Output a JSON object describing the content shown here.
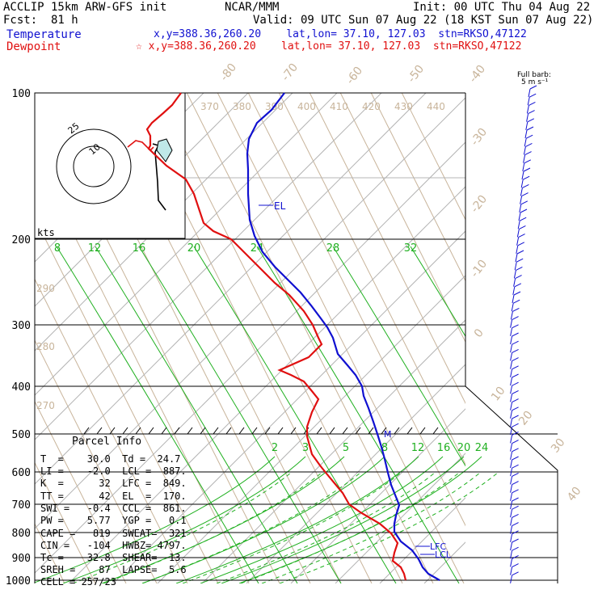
{
  "header": {
    "model": "ACCLIP 15km ARW-GFS init",
    "org": "NCAR/MMM",
    "init": "Init: 00 UTC Thu 04 Aug 22",
    "fcst_label": "Fcst:",
    "fcst_value": "81 h",
    "valid": "Valid: 09 UTC Sun 07 Aug 22 (18 KST Sun 07 Aug 22)",
    "temp_label": "Temperature",
    "dew_label": "Dewpoint",
    "temp_loc": "x,y=388.36,260.20    lat,lon= 37.10, 127.03  stn=RKSO,47122",
    "dew_loc": "☆ x,y=388.36,260.20    lat,lon= 37.10, 127.03  stn=RKSO,47122"
  },
  "wind_legend": {
    "line1": "Full barb:",
    "line2": "5 m s⁻¹"
  },
  "hodograph": {
    "units": "kts",
    "ring_labels": [
      "25",
      "10"
    ]
  },
  "parcel_info": {
    "title": "Parcel Info",
    "rows": [
      "T  =    30.0  Td =  24.7",
      "LI =    -2.0  LCL =  887.",
      "K  =      32  LFC =  849.",
      "TT =      42  EL  =  170.",
      "SWI =   -0.4  CCL =  861.",
      "PW =    5.77  YGP =   0.1",
      "CAPE =   819  SWEAT=  321",
      "CIN =   -104  HWBZ= 4797.",
      "Tc =    32.8  SHEAR=  13.",
      "SREH =    87  LAPSE=  5.6",
      "CELL = 257/23"
    ]
  },
  "levels": {
    "EL": "EL",
    "LFC": "LFC",
    "LCL": "LCL",
    "M": "M"
  },
  "colors": {
    "temperature": "#1010d0",
    "dewpoint": "#e01010",
    "mixing_ratio": "#20b020",
    "adiabat": "#c8b49a",
    "isobar": "#000000",
    "grid": "#b4b4b4"
  },
  "chart_data": {
    "type": "line",
    "xlabel": "",
    "ylabel": "",
    "pressure_levels": [
      100,
      200,
      300,
      400,
      500,
      600,
      700,
      800,
      900,
      1000
    ],
    "isotherm_labels": [
      "-80",
      "-70",
      "-60",
      "-50",
      "-40",
      "-30",
      "-20",
      "-10",
      "0",
      "10",
      "20",
      "30",
      "40"
    ],
    "theta_labels": [
      "370",
      "380",
      "390",
      "400",
      "410",
      "420",
      "430",
      "440"
    ],
    "theta_low_labels": [
      "290",
      "280",
      "270"
    ],
    "mixing_ratio_upper_labels": [
      "8",
      "12",
      "16",
      "20",
      "24",
      "28",
      "32"
    ],
    "mixing_ratio_lower_labels": [
      "2",
      "3",
      "5",
      "8",
      "12",
      "16",
      "20",
      "24"
    ],
    "series": [
      {
        "name": "Temperature",
        "pressure": [
          1000,
          950,
          900,
          850,
          800,
          750,
          700,
          650,
          600,
          550,
          500,
          450,
          400,
          375,
          350,
          330,
          300,
          250,
          200,
          170,
          150,
          125,
          100
        ],
        "temperature_c": [
          30,
          27,
          23,
          21,
          19,
          16.5,
          13,
          10,
          6.5,
          3,
          -1,
          -5,
          -10.5,
          -14,
          -18.5,
          -22,
          -28,
          -38.5,
          -51,
          -58,
          -64,
          -72,
          -78
        ]
      },
      {
        "name": "Dewpoint",
        "pressure": [
          1000,
          950,
          900,
          850,
          800,
          750,
          700,
          650,
          600,
          550,
          500,
          450,
          400,
          375,
          350,
          330,
          300,
          250,
          200,
          170,
          150,
          125,
          100
        ],
        "dewpoint_c": [
          24.7,
          23,
          21,
          18,
          14,
          8,
          0,
          -3,
          -5,
          -8.5,
          -13,
          -16,
          -22,
          -35,
          -33,
          -29,
          -33,
          -45,
          -62,
          -72,
          -82,
          -92,
          -97
        ]
      }
    ]
  }
}
